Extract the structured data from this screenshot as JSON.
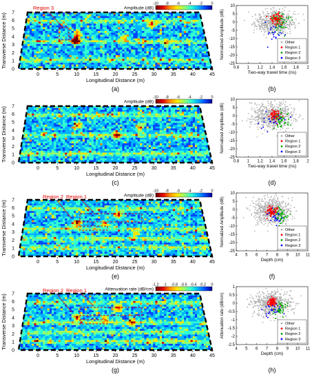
{
  "colors": {
    "other": "#b4b4b4",
    "region1": "#ff0000",
    "region2": "#00aa00",
    "region3": "#0000ff",
    "annotation": "#e00000",
    "colormap": [
      "#6b0000",
      "#e00000",
      "#ff8c00",
      "#ffe600",
      "#9bff63",
      "#32ffd2",
      "#00b4ff",
      "#0046ff",
      "#00008f"
    ]
  },
  "chart_data": [
    {
      "panel": "a",
      "type": "heatmap",
      "caption": "(a)",
      "xlabel": "Longitudinal Distance (m)",
      "ylabel": "Transverse Distance (m)",
      "xticks": [
        "0",
        "5",
        "10",
        "15",
        "20",
        "25",
        "30",
        "35",
        "40",
        "45"
      ],
      "yticks": [
        "0",
        "1",
        "2",
        "3",
        "4",
        "5",
        "6",
        "7"
      ],
      "xlim": [
        -5,
        45
      ],
      "ylim": [
        0,
        7
      ],
      "colorbar": {
        "label": "Amplitude (dB)",
        "ticks": [
          "-10",
          "-8",
          "-6",
          "-4",
          "-2",
          "0"
        ],
        "range": [
          -10,
          0
        ]
      },
      "annotations": [
        {
          "text": "Region 3"
        }
      ]
    },
    {
      "panel": "b",
      "type": "scatter",
      "caption": "(b)",
      "xlabel": "Two-way travel time (ns)",
      "ylabel": "Normalized Amplitude (dB)",
      "xticks": [
        "0.8",
        "1",
        "1.2",
        "1.4",
        "1.6",
        "1.8",
        "2"
      ],
      "yticks": [
        "-25",
        "-20",
        "-15",
        "-10",
        "-5",
        "0",
        "5",
        "10"
      ],
      "xlim": [
        0.8,
        2.0
      ],
      "ylim": [
        -25,
        10
      ],
      "legend": {
        "position": "bottom-right",
        "entries": [
          "Other",
          "Region 1",
          "Region 2",
          "Region 3"
        ]
      },
      "series": [
        {
          "name": "Other",
          "cx": 1.45,
          "cy": 0,
          "sx": 0.16,
          "sy": 3.5,
          "n": 650
        },
        {
          "name": "Region 1",
          "cx": 1.48,
          "cy": 2,
          "sx": 0.05,
          "sy": 1.8,
          "n": 70
        },
        {
          "name": "Region 2",
          "cx": 1.56,
          "cy": -1,
          "sx": 0.08,
          "sy": 3,
          "n": 45
        },
        {
          "name": "Region 3",
          "cx": 1.45,
          "cy": -6,
          "sx": 0.1,
          "sy": 3,
          "n": 22
        }
      ]
    },
    {
      "panel": "c",
      "type": "heatmap",
      "caption": "(c)",
      "xlabel": "Longitudinal Distance (m)",
      "ylabel": "Transverse Distance (m)",
      "xticks": [
        "0",
        "5",
        "10",
        "15",
        "20",
        "25",
        "30",
        "35",
        "40",
        "45"
      ],
      "yticks": [
        "0",
        "1",
        "2",
        "3",
        "4",
        "5",
        "6",
        "7"
      ],
      "xlim": [
        -5,
        45
      ],
      "ylim": [
        0,
        7
      ],
      "colorbar": {
        "label": "Amplitude (dB)",
        "ticks": [
          "-10",
          "-8",
          "-6",
          "-4",
          "-2",
          "0"
        ],
        "range": [
          -10,
          0
        ]
      },
      "annotations": []
    },
    {
      "panel": "d",
      "type": "scatter",
      "caption": "(d)",
      "xlabel": "Two-way travel time (ns)",
      "ylabel": "Normalized Amplitude (dB)",
      "xticks": [
        "0.8",
        "1",
        "1.2",
        "1.4",
        "1.6",
        "1.8",
        "2"
      ],
      "yticks": [
        "-25",
        "-20",
        "-15",
        "-10",
        "-5",
        "0",
        "5",
        "10"
      ],
      "xlim": [
        0.8,
        2.0
      ],
      "ylim": [
        -25,
        10
      ],
      "legend": {
        "position": "bottom-right",
        "entries": [
          "Other",
          "Region 1",
          "Region 2",
          "Region 3"
        ]
      },
      "series": [
        {
          "name": "Other",
          "cx": 1.42,
          "cy": 0,
          "sx": 0.17,
          "sy": 4,
          "n": 650
        },
        {
          "name": "Region 1",
          "cx": 1.45,
          "cy": 0,
          "sx": 0.05,
          "sy": 1.8,
          "n": 70
        },
        {
          "name": "Region 2",
          "cx": 1.55,
          "cy": -3,
          "sx": 0.09,
          "sy": 3,
          "n": 45
        },
        {
          "name": "Region 3",
          "cx": 1.4,
          "cy": -4,
          "sx": 0.12,
          "sy": 3,
          "n": 22
        }
      ]
    },
    {
      "panel": "e",
      "type": "heatmap",
      "caption": "(e)",
      "xlabel": "Longitudinal Distance (m)",
      "ylabel": "Transverse Distance (m)",
      "xticks": [
        "0",
        "5",
        "10",
        "15",
        "20",
        "25",
        "30",
        "35",
        "40",
        "45"
      ],
      "yticks": [
        "0",
        "1",
        "2",
        "3",
        "4",
        "5",
        "6",
        "7"
      ],
      "xlim": [
        -5,
        45
      ],
      "ylim": [
        0,
        7
      ],
      "colorbar": {
        "label": "Amplitude (dB)",
        "ticks": [
          "-10",
          "-8",
          "-6",
          "-4",
          "-2",
          "0"
        ],
        "range": [
          -10,
          0
        ]
      },
      "annotations": [
        {
          "text": "Region 2"
        },
        {
          "text": "Region 1"
        }
      ]
    },
    {
      "panel": "f",
      "type": "scatter",
      "caption": "(f)",
      "xlabel": "Depth (cm)",
      "ylabel": "Normalized Amplitude (dB)",
      "xticks": [
        "4",
        "5",
        "6",
        "7",
        "8",
        "9",
        "10",
        "11"
      ],
      "yticks": [
        "-25",
        "-20",
        "-15",
        "-10",
        "-5",
        "0",
        "5",
        "10"
      ],
      "xlim": [
        4,
        11
      ],
      "ylim": [
        -25,
        10
      ],
      "legend": {
        "position": "bottom-right",
        "entries": [
          "Other",
          "Region 1",
          "Region 2",
          "Region 3"
        ]
      },
      "series": [
        {
          "name": "Other",
          "cx": 7.5,
          "cy": -1,
          "sx": 0.9,
          "sy": 4,
          "n": 650
        },
        {
          "name": "Region 1",
          "cx": 7.5,
          "cy": -1,
          "sx": 0.25,
          "sy": 1.8,
          "n": 70
        },
        {
          "name": "Region 2",
          "cx": 8.3,
          "cy": -4,
          "sx": 0.35,
          "sy": 2.5,
          "n": 45
        },
        {
          "name": "Region 3",
          "cx": 7.8,
          "cy": -5,
          "sx": 0.4,
          "sy": 2.5,
          "n": 22
        }
      ]
    },
    {
      "panel": "g",
      "type": "heatmap",
      "caption": "(g)",
      "xlabel": "Longitudinal Distance (m)",
      "ylabel": "Transverse Distance (m)",
      "xticks": [
        "0",
        "5",
        "10",
        "15",
        "20",
        "25",
        "30",
        "35",
        "40",
        "45"
      ],
      "yticks": [
        "0",
        "1",
        "2",
        "3",
        "4",
        "5",
        "6",
        "7"
      ],
      "xlim": [
        -5,
        45
      ],
      "ylim": [
        0,
        7
      ],
      "colorbar": {
        "label": "Attenuation rate (dB/cm)",
        "ticks": [
          "-1.2",
          "-1",
          "-0.8",
          "-0.6",
          "-0.4",
          "-0.2",
          "0"
        ],
        "range": [
          -1.2,
          0
        ]
      },
      "annotations": [
        {
          "text": "Region 2"
        },
        {
          "text": "Region 1"
        }
      ]
    },
    {
      "panel": "h",
      "type": "scatter",
      "caption": "(h)",
      "xlabel": "Depth (cm)",
      "ylabel": "Attenuation rate (dB/cm)",
      "xticks": [
        "4",
        "5",
        "6",
        "7",
        "8",
        "9",
        "10",
        "11"
      ],
      "yticks": [
        "-2.5",
        "-2",
        "-1.5",
        "-1",
        "-0.5",
        "0",
        "0.5",
        "1"
      ],
      "xlim": [
        4,
        11
      ],
      "ylim": [
        -2.5,
        1
      ],
      "legend": {
        "position": "bottom-right",
        "entries": [
          "Other",
          "Region 1",
          "Region 2",
          "Region 3"
        ]
      },
      "series": [
        {
          "name": "Other",
          "cx": 7.5,
          "cy": 0,
          "sx": 0.9,
          "sy": 0.35,
          "n": 650
        },
        {
          "name": "Region 1",
          "cx": 7.5,
          "cy": 0.05,
          "sx": 0.25,
          "sy": 0.15,
          "n": 70
        },
        {
          "name": "Region 2",
          "cx": 8.3,
          "cy": -0.35,
          "sx": 0.35,
          "sy": 0.25,
          "n": 45
        },
        {
          "name": "Region 3",
          "cx": 7.6,
          "cy": -0.4,
          "sx": 0.4,
          "sy": 0.25,
          "n": 22
        }
      ]
    }
  ]
}
